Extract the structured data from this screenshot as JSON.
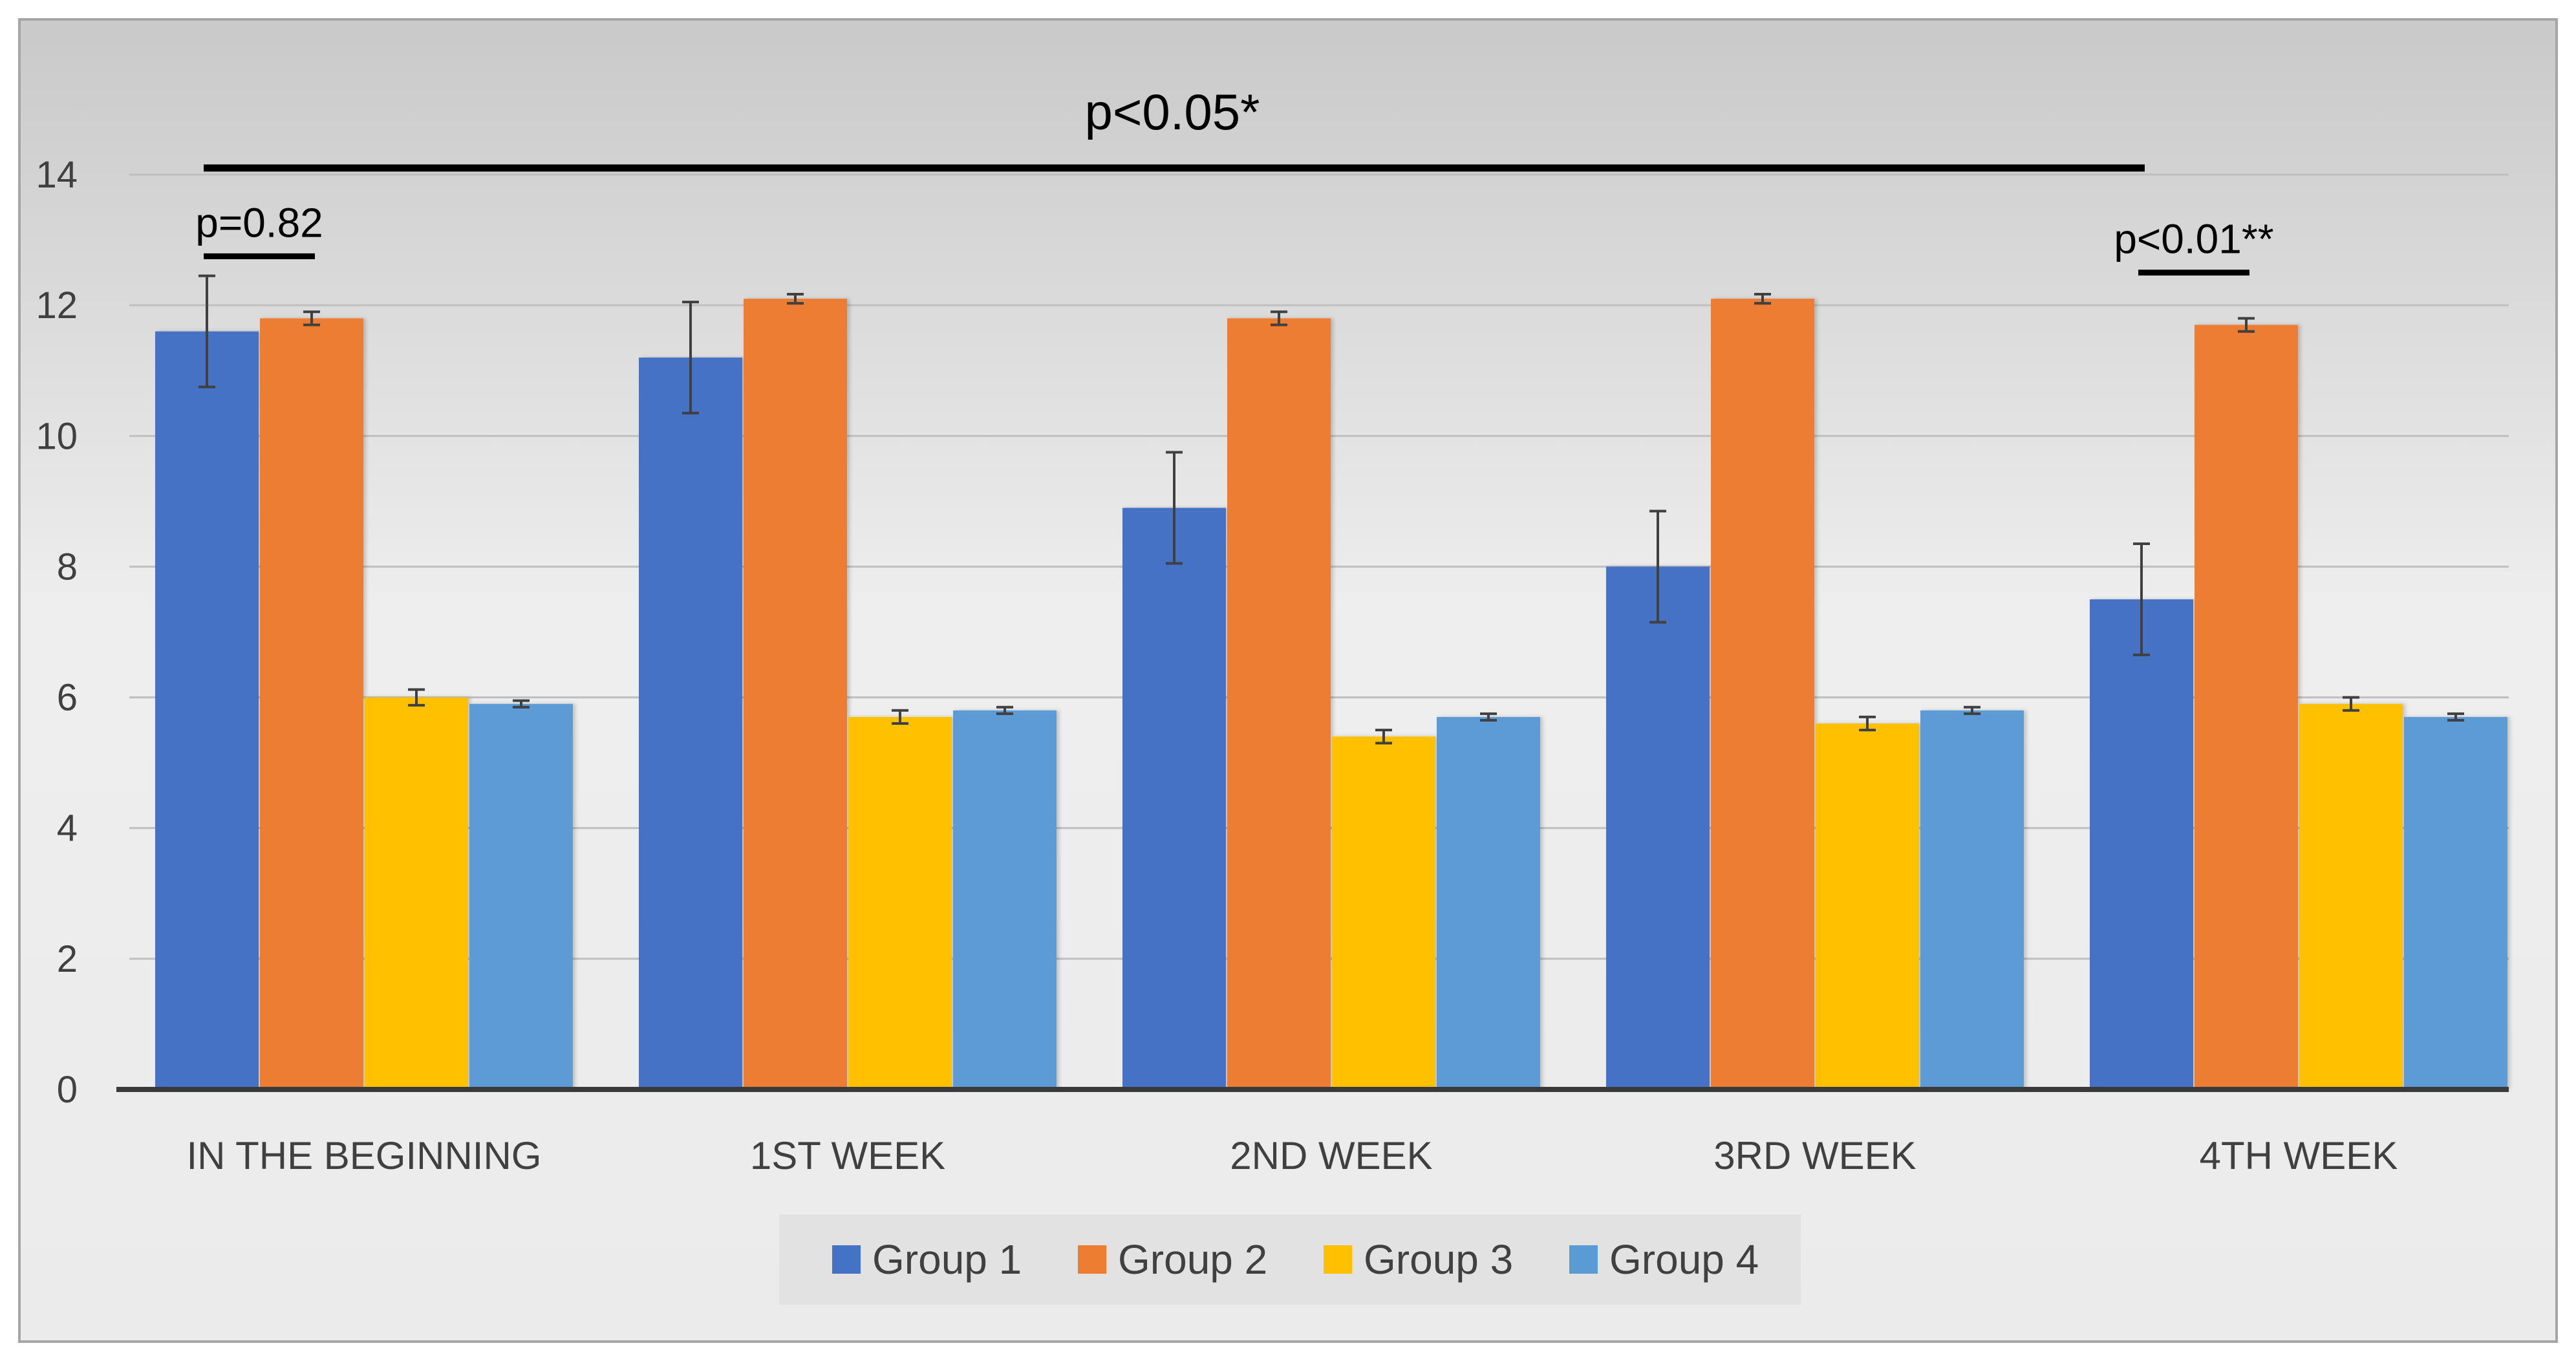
{
  "chart_data": {
    "type": "bar",
    "title": "",
    "xlabel": "",
    "ylabel": "",
    "ylim": [
      0,
      14
    ],
    "yticks": [
      0,
      2,
      4,
      6,
      8,
      10,
      12,
      14
    ],
    "ytick_labels": [
      "0",
      "2",
      "4",
      "6",
      "8",
      "10",
      "12",
      "14"
    ],
    "grid": true,
    "legend_position": "bottom",
    "categories": [
      "IN THE BEGINNING",
      "1ST WEEK",
      "2ND WEEK",
      "3RD WEEK",
      "4TH WEEK"
    ],
    "series": [
      {
        "name": "Group 1",
        "color": "#4472C4",
        "values": [
          11.6,
          11.2,
          8.9,
          8.0,
          7.5
        ],
        "errors": [
          0.85,
          0.85,
          0.85,
          0.85,
          0.85
        ]
      },
      {
        "name": "Group 2",
        "color": "#ED7D31",
        "values": [
          11.8,
          12.1,
          11.8,
          12.1,
          11.7
        ],
        "errors": [
          0.1,
          0.07,
          0.1,
          0.07,
          0.1
        ]
      },
      {
        "name": "Group 3",
        "color": "#FFC000",
        "values": [
          6.0,
          5.7,
          5.4,
          5.6,
          5.9
        ],
        "errors": [
          0.12,
          0.1,
          0.1,
          0.1,
          0.1
        ]
      },
      {
        "name": "Group 4",
        "color": "#5B9BD5",
        "values": [
          5.9,
          5.8,
          5.7,
          5.8,
          5.7
        ],
        "errors": [
          0.05,
          0.05,
          0.05,
          0.05,
          0.05
        ]
      }
    ],
    "annotations": [
      {
        "text": "p<0.05*",
        "from_category": 0,
        "to_category": 4,
        "level": 14.1
      },
      {
        "text": "p=0.82",
        "category": 0,
        "from_series": 0,
        "to_series": 1,
        "level": 12.75
      },
      {
        "text": "p<0.01**",
        "category": 4,
        "from_series": 0,
        "to_series": 1,
        "level": 12.5
      }
    ]
  }
}
